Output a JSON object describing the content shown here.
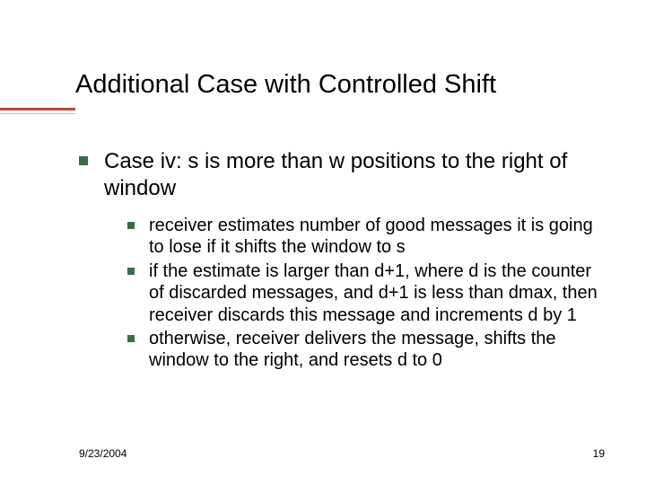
{
  "title": "Additional Case with Controlled Shift",
  "accent_color": "#b94a3a",
  "bullet_color": "#3a6a4a",
  "body": {
    "lvl1_text": "Case iv: s is more than w positions to the right of window",
    "lvl2_items": [
      "receiver estimates number of good messages it is going to lose if it shifts the window to s",
      "if the estimate is larger than d+1, where d is the counter of discarded messages, and d+1 is less than dmax, then receiver discards this message and increments d by 1",
      "otherwise, receiver delivers the message, shifts the window to the right, and resets d to 0"
    ]
  },
  "footer": {
    "date": "9/23/2004",
    "page": "19"
  },
  "typography": {
    "title_fontsize": 29,
    "lvl1_fontsize": 24,
    "lvl2_fontsize": 20,
    "footer_fontsize": 12
  }
}
